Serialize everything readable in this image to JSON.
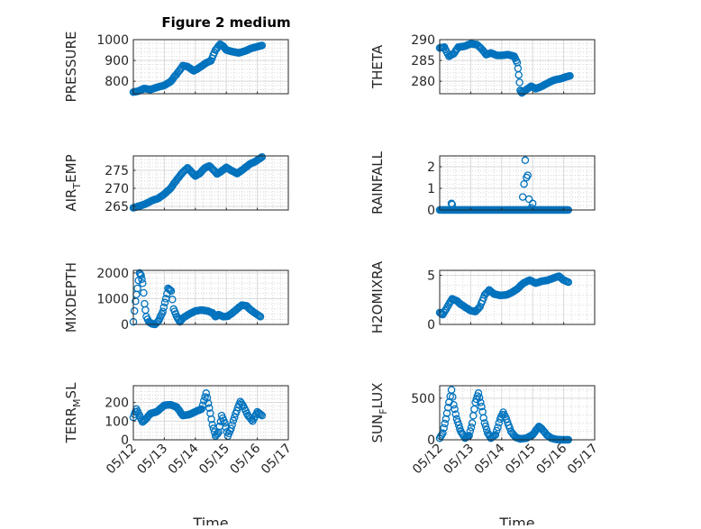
{
  "figure": {
    "title": "Figure 2 medium",
    "marker_color": "#0072BD",
    "x_ticks": [
      "05/12",
      "05/13",
      "05/14",
      "05/15",
      "05/16",
      "05/17"
    ],
    "x_label": "Time"
  },
  "chart_data": [
    {
      "type": "scatter",
      "ylabel_main": "PRESSURE",
      "ylabel_sub": "",
      "ylabel_tail": "",
      "ylim": [
        740,
        1000
      ],
      "yticks": [
        800,
        900,
        1000
      ],
      "xlim": [
        0,
        5
      ],
      "grid": true,
      "show_xticks": false,
      "title": "Figure 2 medium",
      "anchors": [
        [
          0,
          748
        ],
        [
          0.15,
          752
        ],
        [
          0.35,
          765
        ],
        [
          0.55,
          760
        ],
        [
          0.75,
          770
        ],
        [
          1.0,
          780
        ],
        [
          1.2,
          798
        ],
        [
          1.45,
          845
        ],
        [
          1.6,
          875
        ],
        [
          1.75,
          870
        ],
        [
          1.95,
          850
        ],
        [
          2.1,
          862
        ],
        [
          2.35,
          888
        ],
        [
          2.5,
          898
        ],
        [
          2.65,
          950
        ],
        [
          2.8,
          978
        ],
        [
          2.9,
          968
        ],
        [
          3.0,
          950
        ],
        [
          3.2,
          942
        ],
        [
          3.4,
          936
        ],
        [
          3.6,
          945
        ],
        [
          3.8,
          958
        ],
        [
          4.0,
          966
        ],
        [
          4.15,
          972
        ]
      ]
    },
    {
      "type": "scatter",
      "ylabel_main": "THETA",
      "ylabel_sub": "",
      "ylabel_tail": "",
      "ylim": [
        277,
        290
      ],
      "yticks": [
        280,
        285,
        290
      ],
      "xlim": [
        0,
        5
      ],
      "grid": true,
      "show_xticks": false,
      "anchors": [
        [
          0,
          288.0
        ],
        [
          0.15,
          288.2
        ],
        [
          0.3,
          286.0
        ],
        [
          0.45,
          286.6
        ],
        [
          0.6,
          288.2
        ],
        [
          0.8,
          288.4
        ],
        [
          1.0,
          289.0
        ],
        [
          1.2,
          288.8
        ],
        [
          1.35,
          287.8
        ],
        [
          1.5,
          286.4
        ],
        [
          1.65,
          286.8
        ],
        [
          1.85,
          286.2
        ],
        [
          2.0,
          286.2
        ],
        [
          2.2,
          286.4
        ],
        [
          2.4,
          286.0
        ],
        [
          2.5,
          284.5
        ],
        [
          2.55,
          281.5
        ],
        [
          2.6,
          277.8
        ],
        [
          2.65,
          277.2
        ],
        [
          2.8,
          278.0
        ],
        [
          2.95,
          278.8
        ],
        [
          3.1,
          278.2
        ],
        [
          3.3,
          278.8
        ],
        [
          3.5,
          279.6
        ],
        [
          3.7,
          280.3
        ],
        [
          3.9,
          280.6
        ],
        [
          4.1,
          281.1
        ],
        [
          4.2,
          281.3
        ]
      ]
    },
    {
      "type": "scatter",
      "ylabel_main": "AIR",
      "ylabel_sub": "T",
      "ylabel_tail": "EMP",
      "ylim": [
        264,
        279
      ],
      "yticks": [
        265,
        270,
        275
      ],
      "xlim": [
        0,
        5
      ],
      "grid": true,
      "show_xticks": false,
      "anchors": [
        [
          0,
          264.6
        ],
        [
          0.2,
          265.1
        ],
        [
          0.4,
          265.7
        ],
        [
          0.6,
          266.6
        ],
        [
          0.8,
          267.2
        ],
        [
          1.0,
          268.4
        ],
        [
          1.2,
          270.0
        ],
        [
          1.4,
          272.4
        ],
        [
          1.6,
          274.5
        ],
        [
          1.75,
          275.7
        ],
        [
          1.9,
          274.3
        ],
        [
          2.0,
          273.4
        ],
        [
          2.15,
          274.2
        ],
        [
          2.3,
          275.6
        ],
        [
          2.45,
          276.2
        ],
        [
          2.6,
          275.0
        ],
        [
          2.7,
          274.0
        ],
        [
          2.85,
          274.8
        ],
        [
          3.0,
          275.8
        ],
        [
          3.15,
          275.0
        ],
        [
          3.35,
          274.1
        ],
        [
          3.55,
          275.3
        ],
        [
          3.75,
          276.7
        ],
        [
          3.95,
          277.5
        ],
        [
          4.15,
          278.7
        ]
      ]
    },
    {
      "type": "scatter",
      "ylabel_main": "RAINFALL",
      "ylabel_sub": "",
      "ylabel_tail": "",
      "ylim": [
        0,
        2.5
      ],
      "yticks": [
        0,
        1,
        2
      ],
      "xlim": [
        0,
        5
      ],
      "grid": true,
      "show_xticks": false,
      "anchors": [
        [
          0,
          0
        ],
        [
          4.15,
          0
        ]
      ],
      "extra_points": [
        [
          0.38,
          0.3
        ],
        [
          0.4,
          0.25
        ],
        [
          2.68,
          0.6
        ],
        [
          2.72,
          1.2
        ],
        [
          2.76,
          2.3
        ],
        [
          2.8,
          1.5
        ],
        [
          2.84,
          1.6
        ],
        [
          2.88,
          0.5
        ],
        [
          2.95,
          0.1
        ],
        [
          3.0,
          0.3
        ]
      ]
    },
    {
      "type": "scatter",
      "ylabel_main": "MIXDEPTH",
      "ylabel_sub": "",
      "ylabel_tail": "",
      "ylim": [
        0,
        2100
      ],
      "yticks": [
        0,
        1000,
        2000
      ],
      "xlim": [
        0,
        5
      ],
      "grid": true,
      "show_xticks": false,
      "anchors": [
        [
          0,
          100
        ],
        [
          0.07,
          900
        ],
        [
          0.13,
          1400
        ],
        [
          0.2,
          2000
        ],
        [
          0.25,
          1900
        ],
        [
          0.3,
          1600
        ],
        [
          0.36,
          800
        ],
        [
          0.42,
          300
        ],
        [
          0.5,
          100
        ],
        [
          0.6,
          20
        ],
        [
          0.7,
          0
        ],
        [
          0.82,
          150
        ],
        [
          0.95,
          500
        ],
        [
          1.05,
          1000
        ],
        [
          1.12,
          1400
        ],
        [
          1.22,
          1300
        ],
        [
          1.3,
          600
        ],
        [
          1.4,
          300
        ],
        [
          1.5,
          100
        ],
        [
          1.6,
          250
        ],
        [
          1.8,
          400
        ],
        [
          2.0,
          520
        ],
        [
          2.2,
          560
        ],
        [
          2.4,
          520
        ],
        [
          2.55,
          450
        ],
        [
          2.65,
          300
        ],
        [
          2.75,
          380
        ],
        [
          2.9,
          300
        ],
        [
          3.05,
          320
        ],
        [
          3.2,
          450
        ],
        [
          3.35,
          600
        ],
        [
          3.5,
          750
        ],
        [
          3.65,
          720
        ],
        [
          3.8,
          550
        ],
        [
          3.95,
          420
        ],
        [
          4.1,
          300
        ]
      ]
    },
    {
      "type": "scatter",
      "ylabel_main": "H2OMIXRA",
      "ylabel_sub": "",
      "ylabel_tail": "",
      "ylim": [
        0,
        5.5
      ],
      "yticks": [
        0,
        5
      ],
      "xlim": [
        0,
        5
      ],
      "grid": true,
      "show_xticks": false,
      "anchors": [
        [
          0,
          1.2
        ],
        [
          0.1,
          1.0
        ],
        [
          0.25,
          1.8
        ],
        [
          0.4,
          2.6
        ],
        [
          0.55,
          2.4
        ],
        [
          0.7,
          2.0
        ],
        [
          0.85,
          1.7
        ],
        [
          1.0,
          1.4
        ],
        [
          1.15,
          1.3
        ],
        [
          1.3,
          1.8
        ],
        [
          1.45,
          3.0
        ],
        [
          1.6,
          3.5
        ],
        [
          1.75,
          3.1
        ],
        [
          1.95,
          2.95
        ],
        [
          2.15,
          3.0
        ],
        [
          2.3,
          3.2
        ],
        [
          2.5,
          3.6
        ],
        [
          2.7,
          4.2
        ],
        [
          2.9,
          4.5
        ],
        [
          3.1,
          4.2
        ],
        [
          3.3,
          4.4
        ],
        [
          3.5,
          4.5
        ],
        [
          3.7,
          4.75
        ],
        [
          3.85,
          4.9
        ],
        [
          4.0,
          4.5
        ],
        [
          4.15,
          4.3
        ]
      ]
    },
    {
      "type": "scatter",
      "ylabel_main": "TERR",
      "ylabel_sub": "M",
      "ylabel_tail": "SL",
      "ylim": [
        0,
        290
      ],
      "yticks": [
        0,
        100,
        200
      ],
      "xlim": [
        0,
        5
      ],
      "grid": true,
      "show_xticks": true,
      "anchors": [
        [
          0,
          120
        ],
        [
          0.1,
          165
        ],
        [
          0.2,
          130
        ],
        [
          0.3,
          95
        ],
        [
          0.4,
          110
        ],
        [
          0.55,
          140
        ],
        [
          0.75,
          150
        ],
        [
          1.0,
          185
        ],
        [
          1.2,
          188
        ],
        [
          1.4,
          175
        ],
        [
          1.6,
          130
        ],
        [
          1.8,
          135
        ],
        [
          2.0,
          150
        ],
        [
          2.2,
          165
        ],
        [
          2.35,
          250
        ],
        [
          2.45,
          170
        ],
        [
          2.55,
          80
        ],
        [
          2.65,
          20
        ],
        [
          2.75,
          40
        ],
        [
          2.85,
          130
        ],
        [
          2.95,
          90
        ],
        [
          3.05,
          20
        ],
        [
          3.15,
          60
        ],
        [
          3.3,
          140
        ],
        [
          3.45,
          205
        ],
        [
          3.55,
          180
        ],
        [
          3.7,
          130
        ],
        [
          3.85,
          100
        ],
        [
          4.0,
          150
        ],
        [
          4.15,
          130
        ]
      ]
    },
    {
      "type": "scatter",
      "ylabel_main": "SUN",
      "ylabel_sub": "F",
      "ylabel_tail": "LUX",
      "ylim": [
        0,
        650
      ],
      "yticks": [
        0,
        500
      ],
      "xlim": [
        0,
        5
      ],
      "grid": true,
      "show_xticks": true,
      "anchors": [
        [
          0,
          20
        ],
        [
          0.1,
          80
        ],
        [
          0.2,
          250
        ],
        [
          0.3,
          450
        ],
        [
          0.38,
          600
        ],
        [
          0.45,
          420
        ],
        [
          0.55,
          250
        ],
        [
          0.68,
          100
        ],
        [
          0.82,
          20
        ],
        [
          0.95,
          50
        ],
        [
          1.05,
          200
        ],
        [
          1.15,
          450
        ],
        [
          1.25,
          560
        ],
        [
          1.35,
          400
        ],
        [
          1.45,
          200
        ],
        [
          1.55,
          80
        ],
        [
          1.65,
          20
        ],
        [
          1.8,
          60
        ],
        [
          1.95,
          250
        ],
        [
          2.05,
          330
        ],
        [
          2.15,
          250
        ],
        [
          2.3,
          100
        ],
        [
          2.45,
          30
        ],
        [
          2.6,
          10
        ],
        [
          2.8,
          20
        ],
        [
          3.0,
          60
        ],
        [
          3.2,
          160
        ],
        [
          3.3,
          130
        ],
        [
          3.45,
          60
        ],
        [
          3.6,
          20
        ],
        [
          3.75,
          5
        ],
        [
          3.9,
          0
        ],
        [
          4.05,
          0
        ],
        [
          4.15,
          0
        ]
      ]
    }
  ]
}
